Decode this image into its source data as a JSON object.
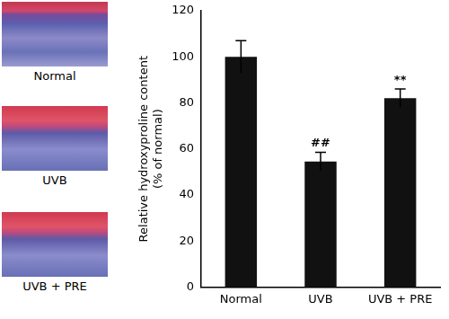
{
  "chart_data": {
    "type": "bar",
    "categories": [
      "Normal",
      "UVB",
      "UVB + PRE"
    ],
    "values": [
      100,
      54.5,
      82
    ],
    "errors": [
      7,
      4,
      4
    ],
    "color": "#111111",
    "ylabel": [
      "Relative hydroxyproline content",
      "(% of normal)"
    ],
    "ylim": [
      0,
      120
    ],
    "yticks": [
      0,
      20,
      40,
      60,
      80,
      100,
      120
    ],
    "grid": false,
    "annotations": [
      {
        "category": "UVB",
        "text": "##"
      },
      {
        "category": "UVB + PRE",
        "text": "**"
      }
    ]
  },
  "image_panels": {
    "labels": [
      "Normal",
      "UVB",
      "UVB + PRE"
    ]
  }
}
